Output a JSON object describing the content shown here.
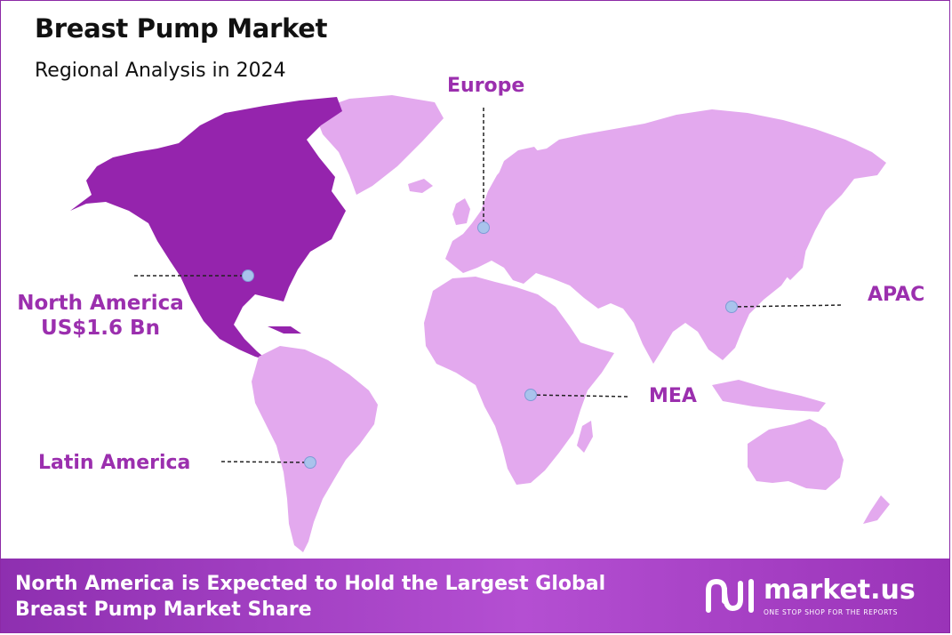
{
  "header": {
    "title": "Breast Pump Market",
    "subtitle": "Regional Analysis in 2024"
  },
  "regions": {
    "north_america": {
      "name": "North America",
      "value": "US$1.6 Bn",
      "highlight": true
    },
    "europe": {
      "name": "Europe"
    },
    "apac": {
      "name": "APAC"
    },
    "mea": {
      "name": "MEA"
    },
    "latin_america": {
      "name": "Latin America"
    }
  },
  "footer": {
    "line1": "North America is Expected to Hold the Largest Global",
    "line2": "Breast Pump Market Share"
  },
  "logo": {
    "name": "market.us",
    "tagline": "ONE STOP SHOP FOR THE REPORTS"
  },
  "colors": {
    "highlight_region": "#9524ad",
    "other_regions": "#e3a9ee",
    "label_text": "#9b2fae",
    "marker": "#a9c3ec",
    "footer_bg": "#a43fc6"
  }
}
